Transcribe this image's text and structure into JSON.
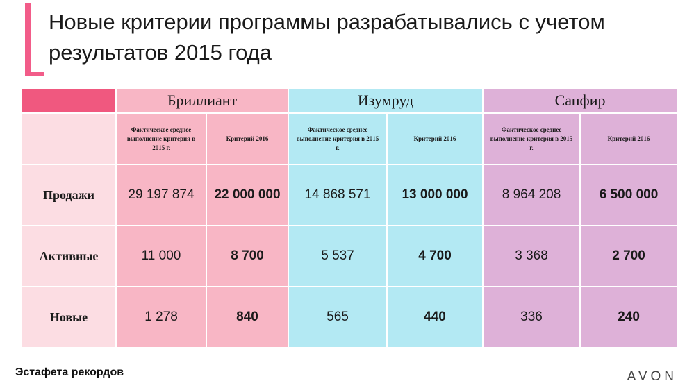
{
  "title": "Новые критерии программы разрабатывались с учетом результатов 2015 года",
  "table": {
    "groups": [
      "Бриллиант",
      "Изумруд",
      "Сапфир"
    ],
    "sub_headers": {
      "actual": "Фактическое среднее выполнение критерия в 2015 г.",
      "actual_alt": "Фактическое среднее выполнение критерия в 2015 г.",
      "criterion": "Критерий 2016"
    },
    "rows": [
      {
        "label": "Продажи",
        "values": [
          "29 197 874",
          "22 000 000",
          "14 868 571",
          "13 000 000",
          "8 964 208",
          "6 500 000"
        ]
      },
      {
        "label": "Активные",
        "values": [
          "11 000",
          "8 700",
          "5 537",
          "4 700",
          "3 368",
          "2 700"
        ]
      },
      {
        "label": "Новые",
        "values": [
          "1 278",
          "840",
          "565",
          "440",
          "336",
          "240"
        ]
      }
    ]
  },
  "footer": {
    "left": "Эстафета рекордов",
    "brand": "AVON"
  },
  "colors": {
    "accent": "#f25c89",
    "brilliant": "#f8b6c5",
    "emerald": "#b3e9f3",
    "sapphire": "#deb1d8",
    "row_header": "#fcdde3"
  }
}
